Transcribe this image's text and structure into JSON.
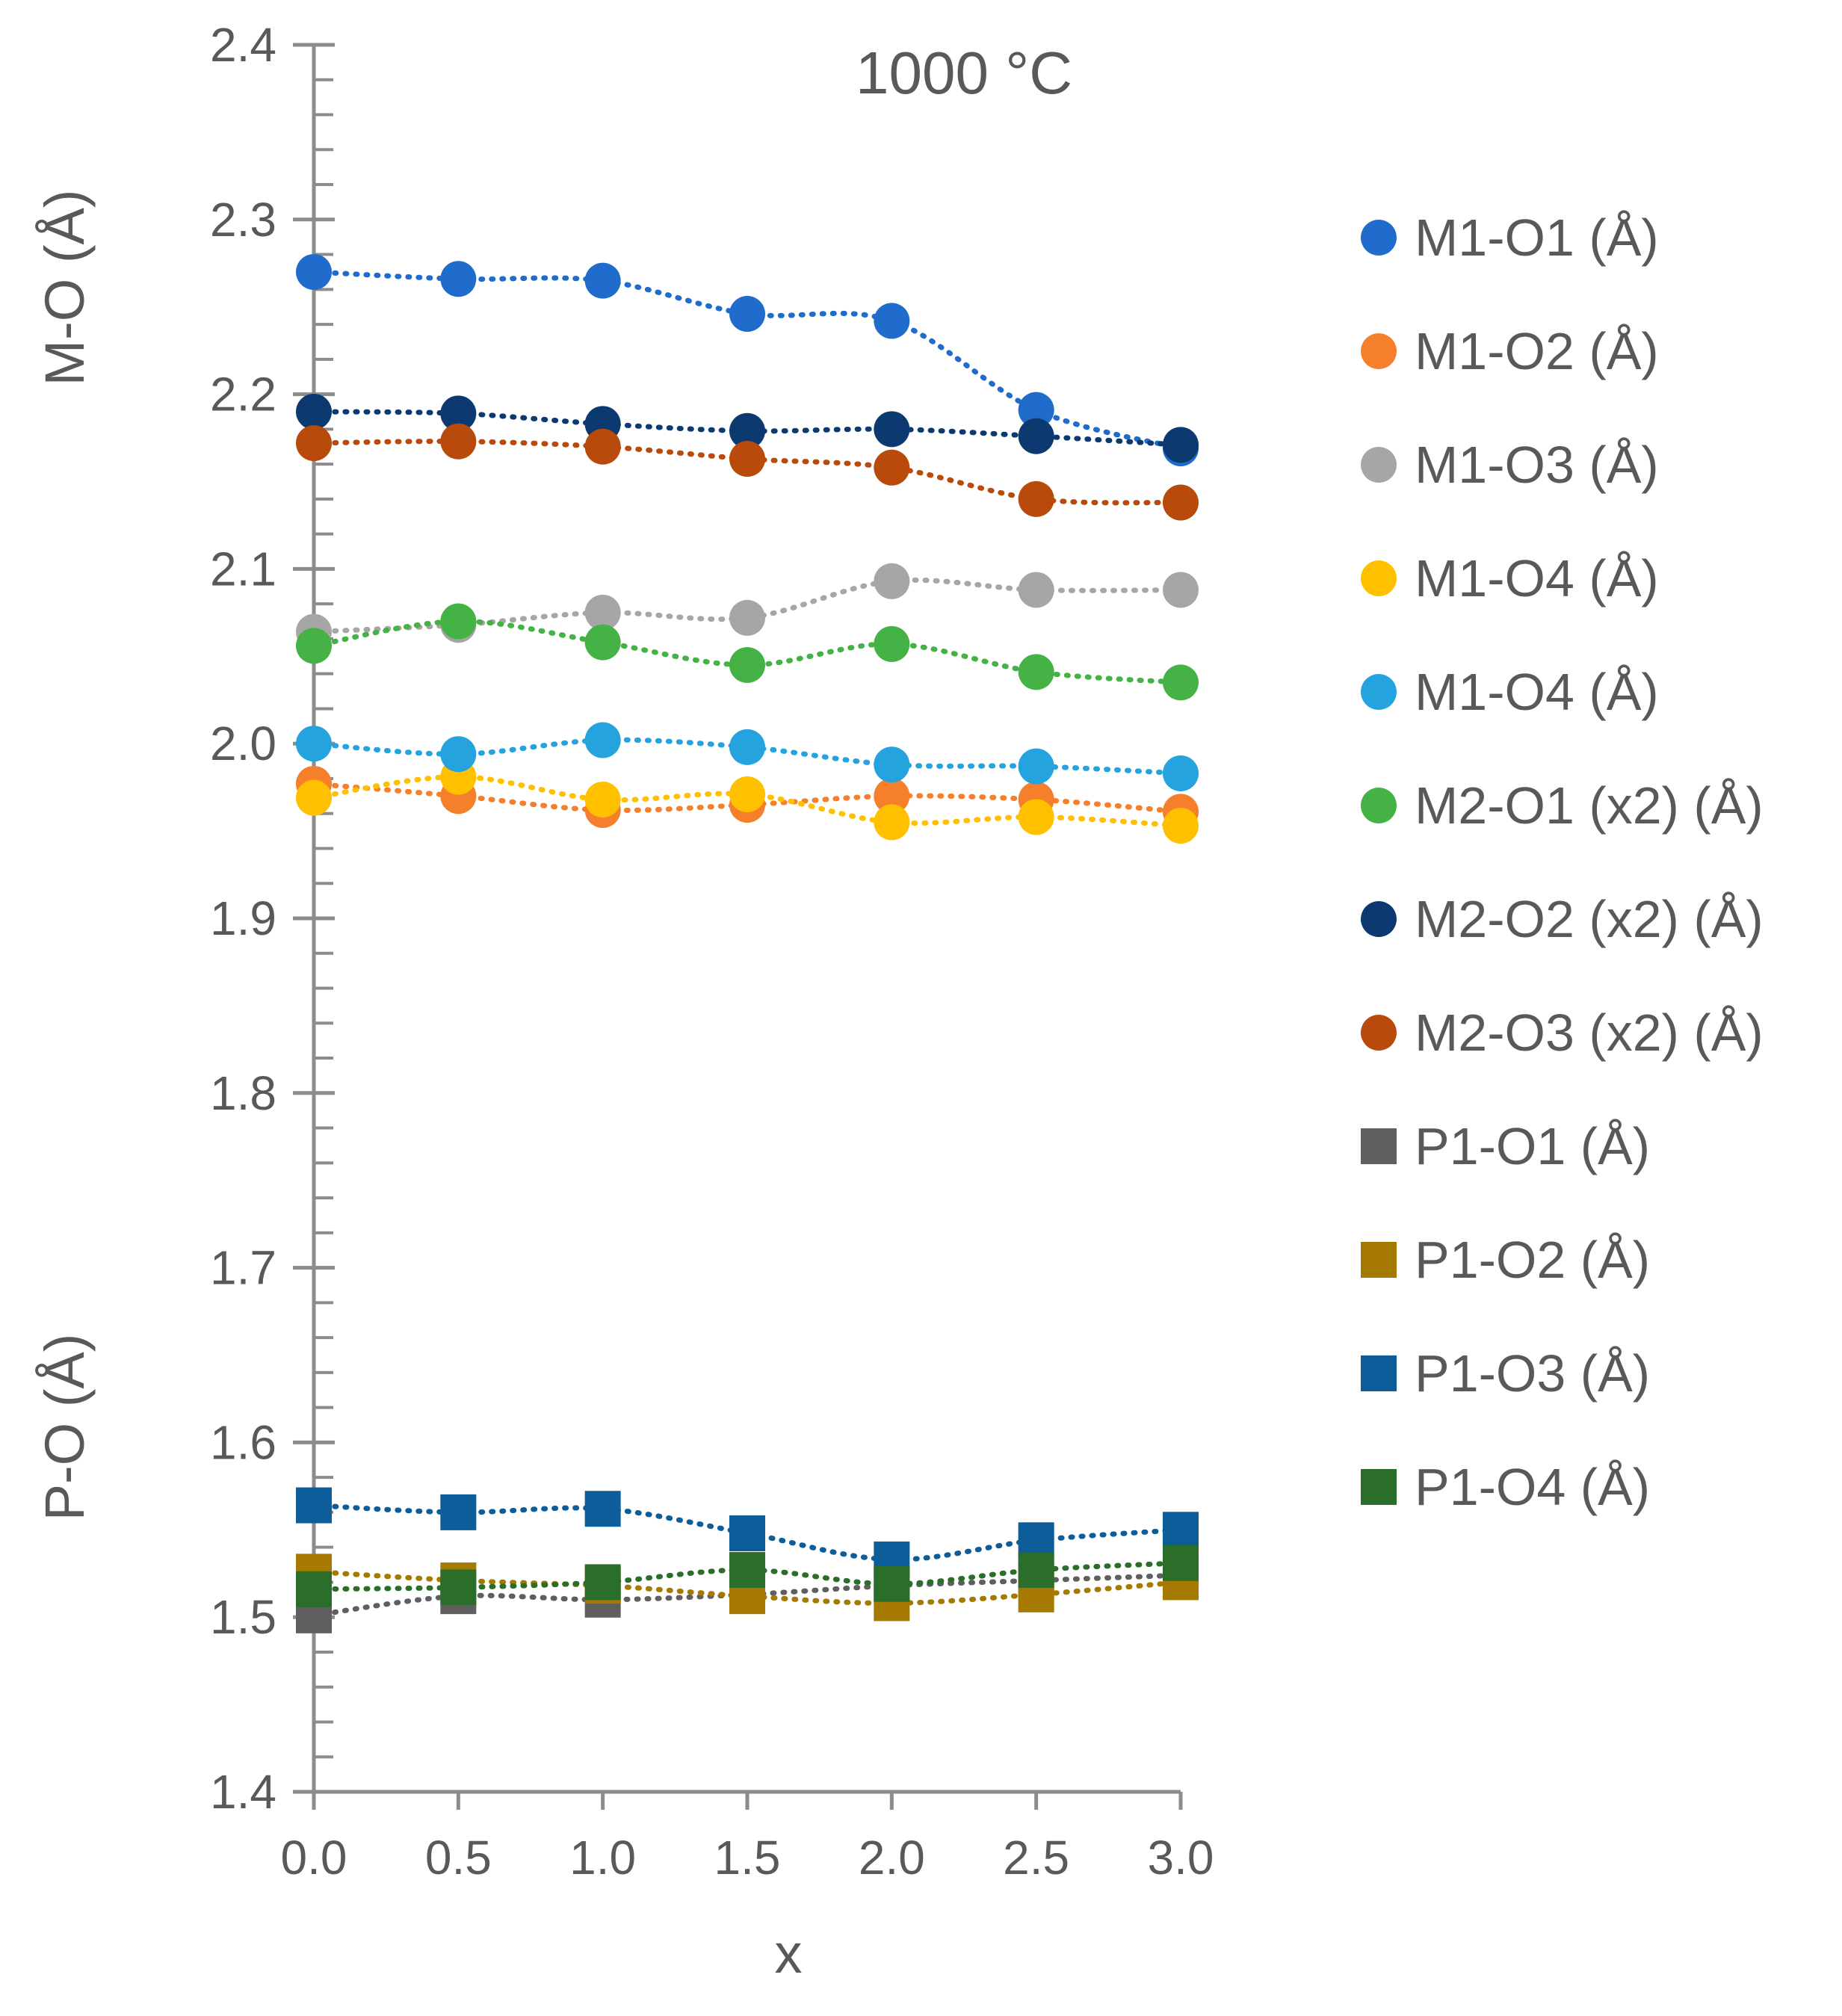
{
  "chart_data": {
    "type": "scatter",
    "title": "1000 °C",
    "xlabel": "x",
    "ylabel_upper": "M-O (Å)",
    "ylabel_lower": "P-O (Å)",
    "xlim": [
      0,
      3
    ],
    "ylim": [
      1.4,
      2.4
    ],
    "x_ticks": [
      "0.0",
      "0.5",
      "1.0",
      "1.5",
      "2.0",
      "2.5",
      "3.0"
    ],
    "y_ticks": [
      "1.4",
      "1.5",
      "1.6",
      "1.7",
      "1.8",
      "1.9",
      "2.0",
      "2.1",
      "2.2",
      "2.3",
      "2.4"
    ],
    "grid": false,
    "legend_position": "right",
    "x": [
      0,
      0.5,
      1.0,
      1.5,
      2.0,
      2.5,
      3.0
    ],
    "series": [
      {
        "name": "M1-O1 (Å)",
        "marker": "circle",
        "color": "#1f6ccc",
        "values": [
          2.27,
          2.266,
          2.265,
          2.246,
          2.242,
          2.191,
          2.169
        ]
      },
      {
        "name": "M1-O2 (Å)",
        "marker": "circle",
        "color": "#f57f2a",
        "values": [
          1.977,
          1.97,
          1.962,
          1.965,
          1.97,
          1.968,
          1.961
        ]
      },
      {
        "name": "M1-O3 (Å)",
        "marker": "circle",
        "color": "#a6a6a6",
        "values": [
          2.064,
          2.068,
          2.075,
          2.072,
          2.093,
          2.088,
          2.088
        ]
      },
      {
        "name": "M1-O4 (Å)",
        "marker": "circle",
        "color": "#ffc000",
        "values": [
          1.969,
          1.981,
          1.968,
          1.971,
          1.955,
          1.958,
          1.953
        ]
      },
      {
        "name": "M1-O4 (Å)",
        "marker": "circle",
        "color": "#24a3de",
        "values": [
          2.0,
          1.994,
          2.002,
          1.998,
          1.988,
          1.987,
          1.983
        ]
      },
      {
        "name": "M2-O1 (x2) (Å)",
        "marker": "circle",
        "color": "#44b244",
        "values": [
          2.056,
          2.07,
          2.058,
          2.045,
          2.057,
          2.041,
          2.035
        ]
      },
      {
        "name": "M2-O2 (x2) (Å)",
        "marker": "circle",
        "color": "#0c3a70",
        "values": [
          2.19,
          2.189,
          2.183,
          2.179,
          2.18,
          2.176,
          2.171
        ]
      },
      {
        "name": "M2-O3 (x2) (Å)",
        "marker": "circle",
        "color": "#b84a0c",
        "values": [
          2.172,
          2.173,
          2.17,
          2.163,
          2.158,
          2.14,
          2.138
        ]
      },
      {
        "name": "P1-O1 (Å)",
        "marker": "square",
        "color": "#5f5f5f",
        "values": [
          1.501,
          1.512,
          1.51,
          1.513,
          1.518,
          1.521,
          1.524
        ]
      },
      {
        "name": "P1-O2 (Å)",
        "marker": "square",
        "color": "#a67a00",
        "values": [
          1.526,
          1.521,
          1.518,
          1.512,
          1.508,
          1.513,
          1.52
        ]
      },
      {
        "name": "P1-O3 (Å)",
        "marker": "square",
        "color": "#0c5d99",
        "values": [
          1.564,
          1.56,
          1.562,
          1.548,
          1.533,
          1.544,
          1.55
        ]
      },
      {
        "name": "P1-O4 (Å)",
        "marker": "square",
        "color": "#2a6e2a",
        "values": [
          1.516,
          1.517,
          1.52,
          1.527,
          1.519,
          1.527,
          1.531
        ]
      }
    ]
  }
}
